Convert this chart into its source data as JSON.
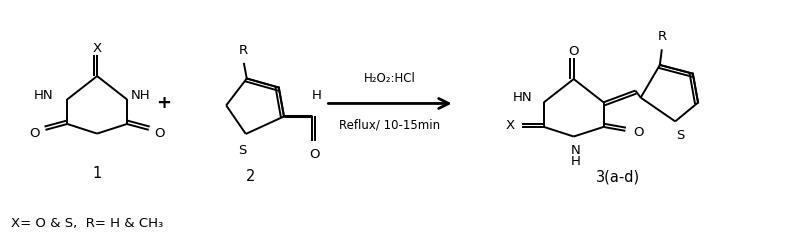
{
  "background_color": "#ffffff",
  "text_color": "#000000",
  "figsize": [
    7.88,
    2.48
  ],
  "dpi": 100,
  "compound1_label": "1",
  "compound2_label": "2",
  "compound3_label": "3(a-d)",
  "plus_sign": "+",
  "arrow_label_top": "H₂O₂:HCl",
  "arrow_label_bottom": "Reflux/ 10-15min",
  "footnote": "X= O & S,  R= H & CH₃"
}
